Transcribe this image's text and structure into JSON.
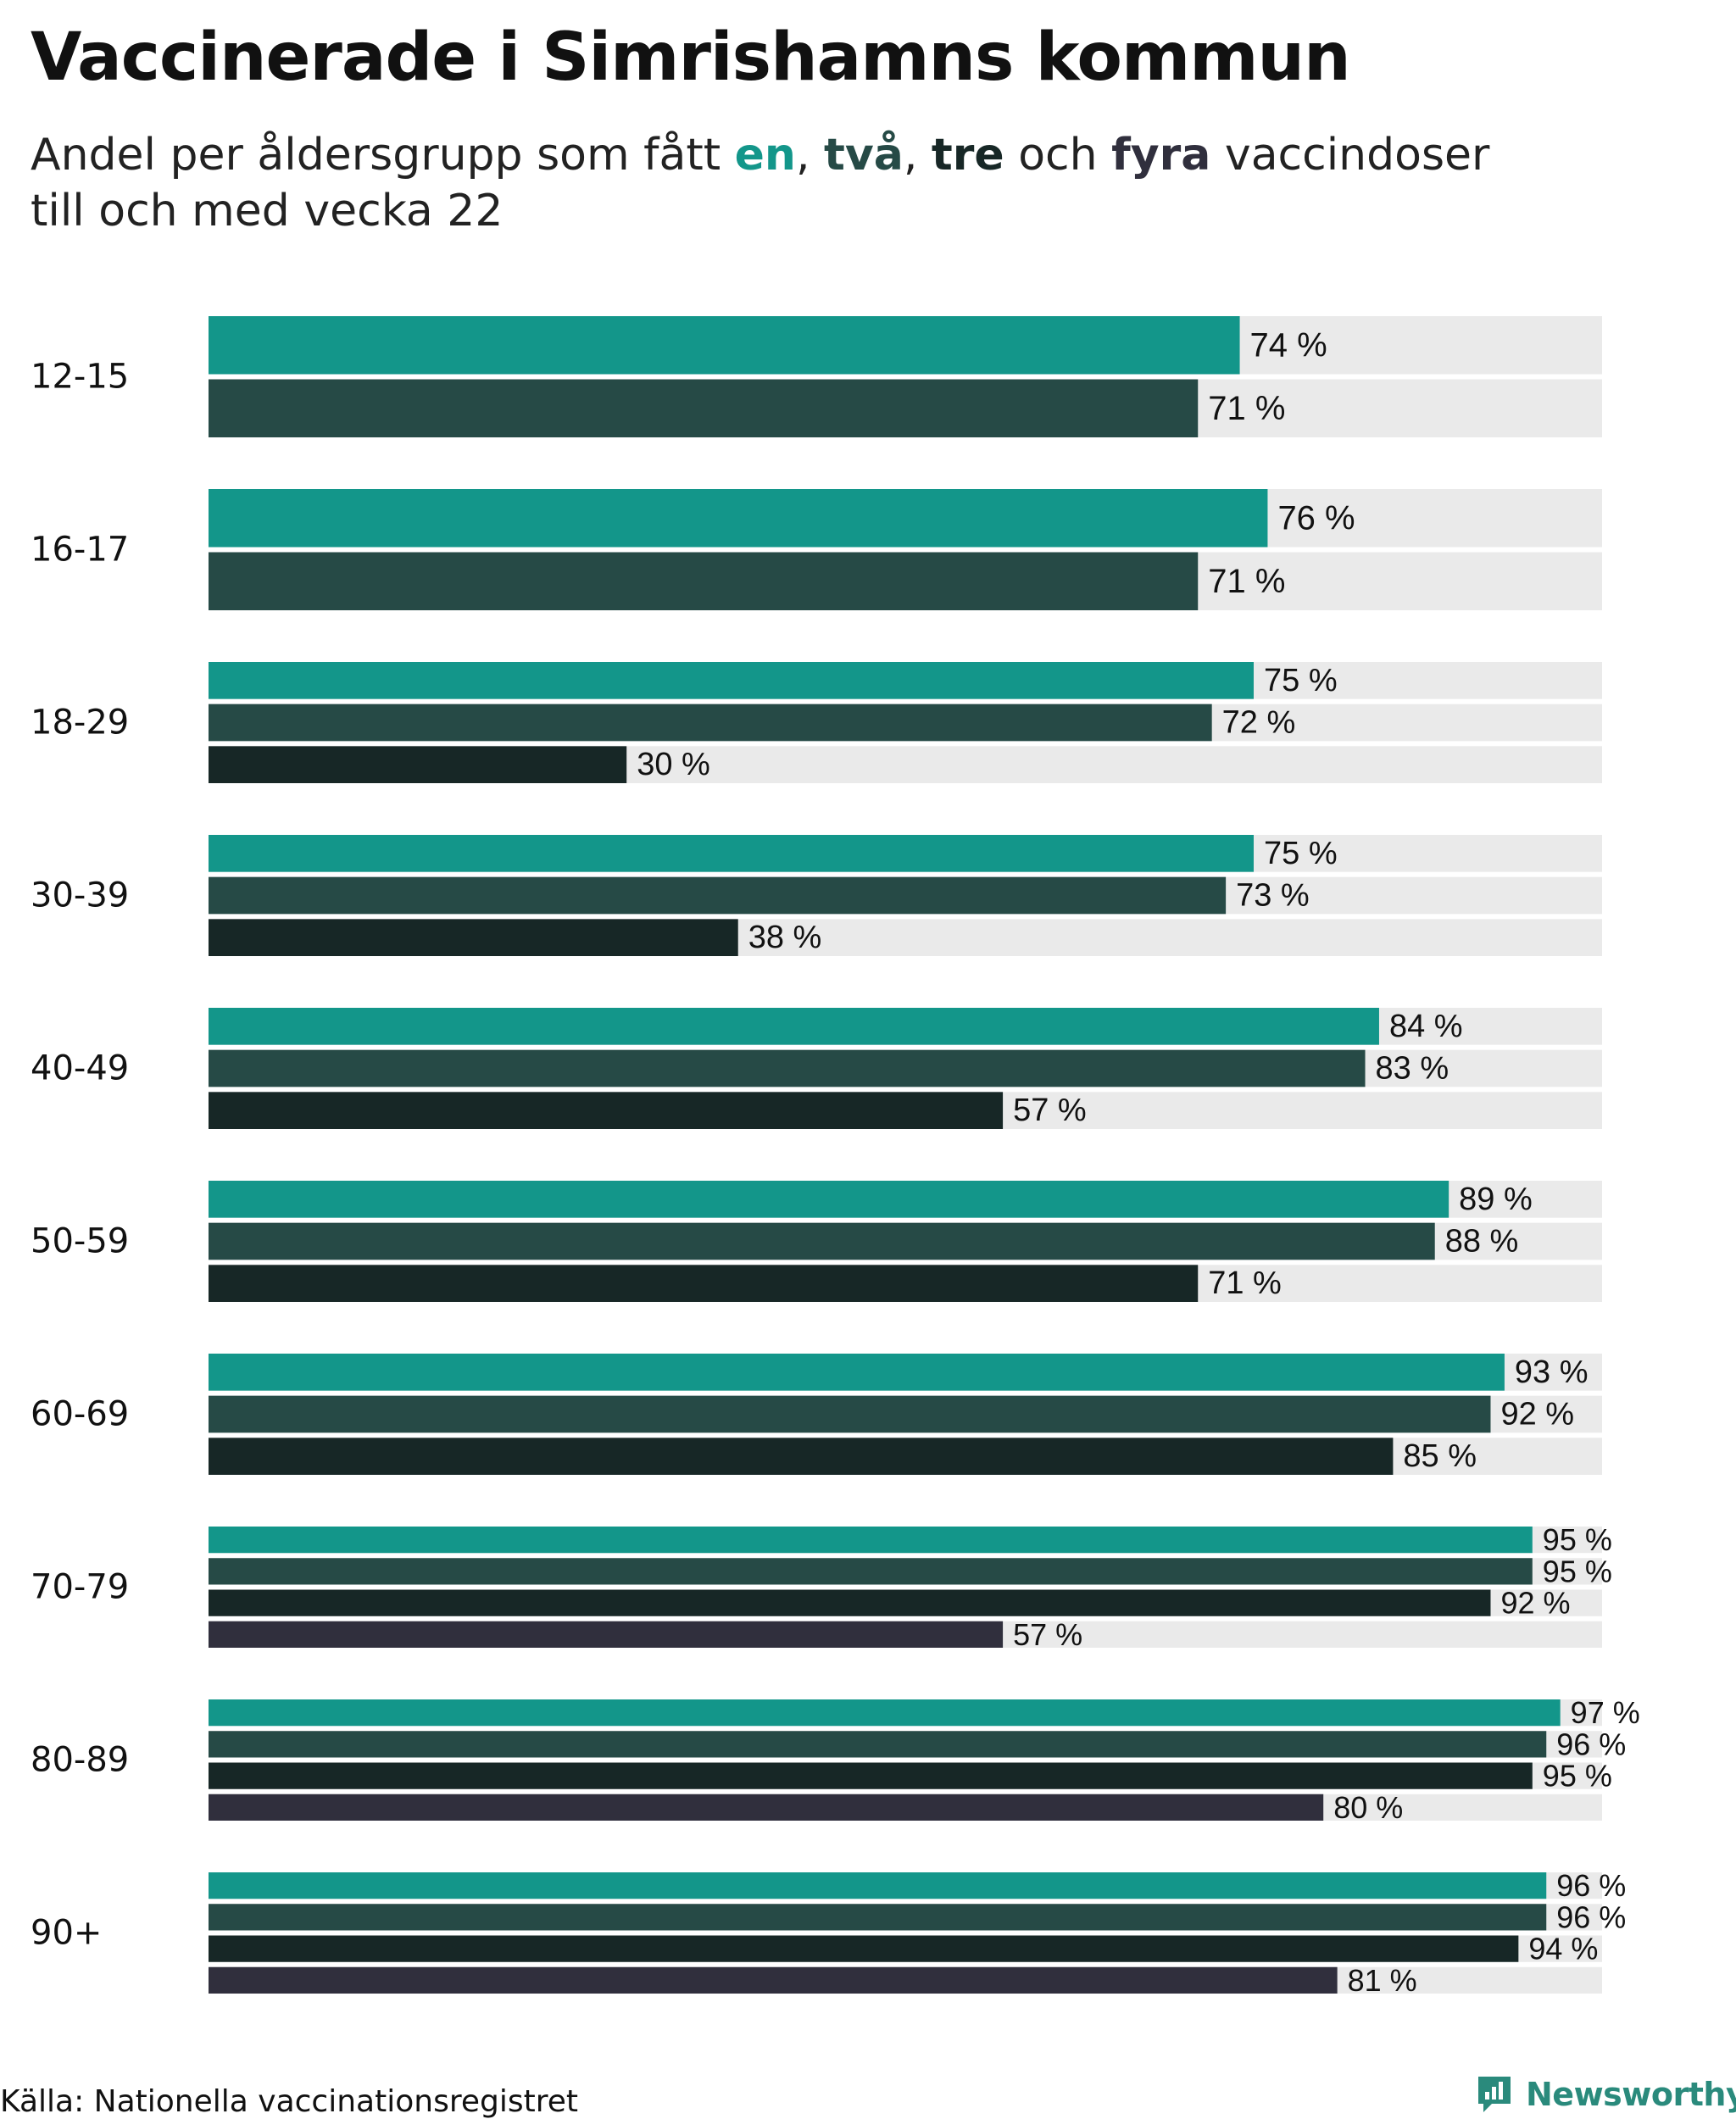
{
  "title": "Vaccinerade i Simrishamns kommun",
  "subtitle": {
    "prefix": "Andel per åldersgrupp som fått ",
    "dose1": "en",
    "sep1": ", ",
    "dose2": "två",
    "sep2": ", ",
    "dose3": "tre",
    "sep3": " och ",
    "dose4": "fyra",
    "suffix_line1": " vaccindoser",
    "line2": "till och med vecka 22"
  },
  "colors": {
    "dose1": "#13968a",
    "dose2": "#264a46",
    "dose3": "#172726",
    "dose4": "#302f3d",
    "track": "#eaeaea",
    "text": "#111111"
  },
  "source": "Källa: Nationella vaccinationsregistret",
  "brand": {
    "name": "Newsworthy",
    "icon": "newsworthy-logo-icon",
    "color": "#2a8a7c"
  },
  "chart_data": {
    "type": "bar",
    "orientation": "horizontal",
    "unit": "%",
    "xlim": [
      0,
      100
    ],
    "grid": false,
    "legend": "none",
    "series_names": [
      "en",
      "två",
      "tre",
      "fyra"
    ],
    "categories": [
      "12-15",
      "16-17",
      "18-29",
      "30-39",
      "40-49",
      "50-59",
      "60-69",
      "70-79",
      "80-89",
      "90+"
    ],
    "groups": [
      {
        "label": "12-15",
        "values": [
          74,
          71
        ]
      },
      {
        "label": "16-17",
        "values": [
          76,
          71
        ]
      },
      {
        "label": "18-29",
        "values": [
          75,
          72,
          30
        ]
      },
      {
        "label": "30-39",
        "values": [
          75,
          73,
          38
        ]
      },
      {
        "label": "40-49",
        "values": [
          84,
          83,
          57
        ]
      },
      {
        "label": "50-59",
        "values": [
          89,
          88,
          71
        ]
      },
      {
        "label": "60-69",
        "values": [
          93,
          92,
          85
        ]
      },
      {
        "label": "70-79",
        "values": [
          95,
          95,
          92,
          57
        ]
      },
      {
        "label": "80-89",
        "values": [
          97,
          96,
          95,
          80
        ]
      },
      {
        "label": "90+",
        "values": [
          96,
          96,
          94,
          81
        ]
      }
    ]
  }
}
